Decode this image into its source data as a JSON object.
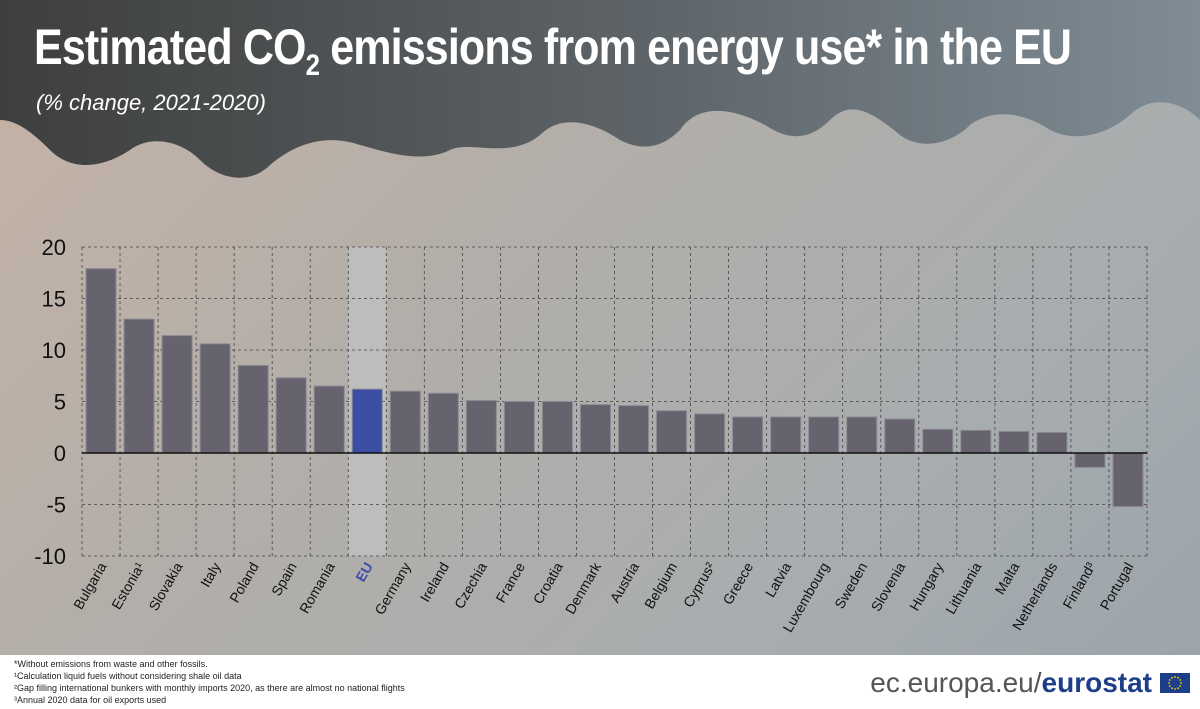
{
  "title": "Estimated CO2 emissions from energy use* in the EU",
  "title_parts": {
    "pre": "Estimated CO",
    "sub": "2",
    "post": " emissions from energy use* in the EU"
  },
  "subtitle": "(% change, 2021-2020)",
  "chart_data": {
    "type": "bar",
    "categories": [
      "Bulgaria",
      "Estonia¹",
      "Slovakia",
      "Italy",
      "Poland",
      "Spain",
      "Romania",
      "EU",
      "Germany",
      "Ireland",
      "Czechia",
      "France",
      "Croatia",
      "Denmark",
      "Austria",
      "Belgium",
      "Cyprus²",
      "Greece",
      "Latvia",
      "Luxembourg",
      "Sweden",
      "Slovenia",
      "Hungary",
      "Lithuania",
      "Malta",
      "Netherlands",
      "Finland³",
      "Portugal"
    ],
    "values": [
      17.9,
      13.0,
      11.4,
      10.6,
      8.5,
      7.3,
      6.5,
      6.2,
      6.0,
      5.8,
      5.1,
      5.0,
      5.0,
      4.7,
      4.6,
      4.1,
      3.8,
      3.5,
      3.5,
      3.5,
      3.5,
      3.3,
      2.3,
      2.2,
      2.1,
      2.0,
      -1.4,
      -5.2
    ],
    "ylim": [
      -10,
      20
    ],
    "yticks": [
      20,
      15,
      10,
      5,
      0,
      -5,
      -10
    ],
    "grid": true,
    "highlight": "EU",
    "colors": {
      "bar": "#66636f",
      "highlight": "#3b4ea3",
      "highlight_band": "#bdbdbd"
    }
  },
  "footnotes": [
    "*Without emissions from waste and other fossils.",
    "¹Calculation liquid fuels without considering shale oil data",
    "²Gap filling international bunkers with monthly imports 2020, as there are almost no national flights",
    "³Annual 2020 data for oil exports used"
  ],
  "brand": {
    "domain": "ec.europa.eu/",
    "name": "eurostat"
  }
}
